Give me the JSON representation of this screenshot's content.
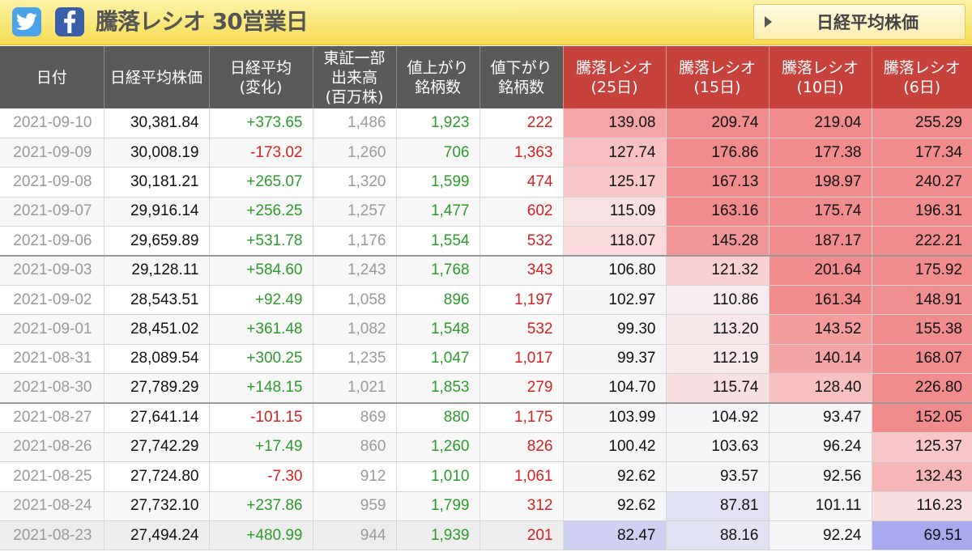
{
  "header": {
    "title": "騰落レシオ 30営業日",
    "nikkei_button": "日経平均株価",
    "twitter_icon": "twitter-icon",
    "facebook_icon": "facebook-icon"
  },
  "colors": {
    "positive": "#2e9a2e",
    "negative": "#d52121",
    "header_bg": "#5a5a5a",
    "ratio_header_bg": "#c8423c",
    "ratio_high_bg": "#f08c8c",
    "ratio_low_bg": "#a9a9ee"
  },
  "table": {
    "columns": [
      "日付",
      "日経平均株価",
      "日経平均\n(変化)",
      "東証一部\n出来高\n(百万株)",
      "値上がり\n銘柄数",
      "値下がり\n銘柄数",
      "騰落レシオ\n(25日)",
      "騰落レシオ\n(15日)",
      "騰落レシオ\n(10日)",
      "騰落レシオ\n(6日)"
    ],
    "rows": [
      {
        "date": "2021-09-10",
        "nikkei": "30,381.84",
        "change": "+373.65",
        "volume": "1,486",
        "advances": "1,923",
        "declines": "222",
        "r25": "139.08",
        "r15": "209.74",
        "r10": "219.04",
        "r6": "255.29"
      },
      {
        "date": "2021-09-09",
        "nikkei": "30,008.19",
        "change": "-173.02",
        "volume": "1,260",
        "advances": "706",
        "declines": "1,363",
        "r25": "127.74",
        "r15": "176.86",
        "r10": "177.38",
        "r6": "177.34"
      },
      {
        "date": "2021-09-08",
        "nikkei": "30,181.21",
        "change": "+265.07",
        "volume": "1,320",
        "advances": "1,599",
        "declines": "474",
        "r25": "125.17",
        "r15": "167.13",
        "r10": "198.97",
        "r6": "240.27"
      },
      {
        "date": "2021-09-07",
        "nikkei": "29,916.14",
        "change": "+256.25",
        "volume": "1,257",
        "advances": "1,477",
        "declines": "602",
        "r25": "115.09",
        "r15": "163.16",
        "r10": "175.74",
        "r6": "196.31"
      },
      {
        "date": "2021-09-06",
        "nikkei": "29,659.89",
        "change": "+531.78",
        "volume": "1,176",
        "advances": "1,554",
        "declines": "532",
        "r25": "118.07",
        "r15": "145.28",
        "r10": "187.17",
        "r6": "222.21"
      },
      {
        "date": "2021-09-03",
        "nikkei": "29,128.11",
        "change": "+584.60",
        "volume": "1,243",
        "advances": "1,768",
        "declines": "343",
        "r25": "106.80",
        "r15": "121.32",
        "r10": "201.64",
        "r6": "175.92"
      },
      {
        "date": "2021-09-02",
        "nikkei": "28,543.51",
        "change": "+92.49",
        "volume": "1,058",
        "advances": "896",
        "declines": "1,197",
        "r25": "102.97",
        "r15": "110.86",
        "r10": "161.34",
        "r6": "148.91"
      },
      {
        "date": "2021-09-01",
        "nikkei": "28,451.02",
        "change": "+361.48",
        "volume": "1,082",
        "advances": "1,548",
        "declines": "532",
        "r25": "99.30",
        "r15": "113.20",
        "r10": "143.52",
        "r6": "155.38"
      },
      {
        "date": "2021-08-31",
        "nikkei": "28,089.54",
        "change": "+300.25",
        "volume": "1,235",
        "advances": "1,047",
        "declines": "1,017",
        "r25": "99.37",
        "r15": "112.19",
        "r10": "140.14",
        "r6": "168.07"
      },
      {
        "date": "2021-08-30",
        "nikkei": "27,789.29",
        "change": "+148.15",
        "volume": "1,021",
        "advances": "1,853",
        "declines": "279",
        "r25": "104.70",
        "r15": "115.74",
        "r10": "128.40",
        "r6": "226.80"
      },
      {
        "date": "2021-08-27",
        "nikkei": "27,641.14",
        "change": "-101.15",
        "volume": "869",
        "advances": "880",
        "declines": "1,175",
        "r25": "103.99",
        "r15": "104.92",
        "r10": "93.47",
        "r6": "152.05"
      },
      {
        "date": "2021-08-26",
        "nikkei": "27,742.29",
        "change": "+17.49",
        "volume": "860",
        "advances": "1,260",
        "declines": "826",
        "r25": "100.42",
        "r15": "103.63",
        "r10": "96.24",
        "r6": "125.37"
      },
      {
        "date": "2021-08-25",
        "nikkei": "27,724.80",
        "change": "-7.30",
        "volume": "912",
        "advances": "1,010",
        "declines": "1,061",
        "r25": "92.62",
        "r15": "93.57",
        "r10": "92.56",
        "r6": "132.43"
      },
      {
        "date": "2021-08-24",
        "nikkei": "27,732.10",
        "change": "+237.86",
        "volume": "959",
        "advances": "1,799",
        "declines": "312",
        "r25": "92.62",
        "r15": "87.81",
        "r10": "101.11",
        "r6": "116.23"
      },
      {
        "date": "2021-08-23",
        "nikkei": "27,494.24",
        "change": "+480.99",
        "volume": "944",
        "advances": "1,939",
        "declines": "201",
        "r25": "82.47",
        "r15": "88.16",
        "r10": "92.24",
        "r6": "69.51"
      }
    ]
  }
}
